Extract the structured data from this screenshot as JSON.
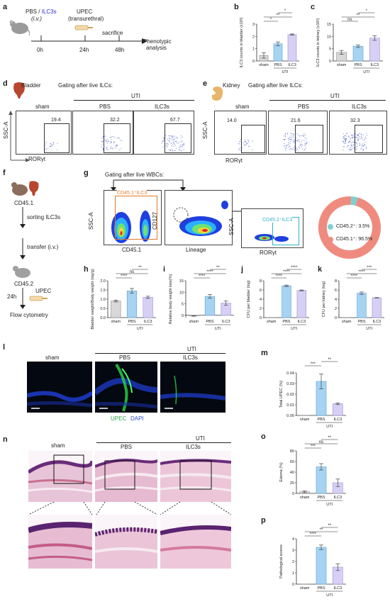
{
  "panel_a": {
    "letter": "a",
    "injection_prefix": "PBS / ",
    "injection_cells": "ILC3s",
    "route": "(i.v.)",
    "infection": "UPEC",
    "infection_route": "(transurethral)",
    "sacrifice": "sacrifice",
    "outcome_line1": "Phenotypic",
    "outcome_line2": "analysis",
    "t0": "0h",
    "t1": "24h",
    "t2": "48h"
  },
  "panel_b": {
    "letter": "b"
  },
  "panel_c": {
    "letter": "c"
  },
  "panel_d": {
    "letter": "d",
    "organ": "Bladder",
    "gating": "Gating after live ILCs:",
    "group": "UTI",
    "yaxis": "SSC-A",
    "xaxis": "RORγt",
    "plots": [
      {
        "label": "sham",
        "value": "19.4"
      },
      {
        "label": "PBS",
        "value": "32.2"
      },
      {
        "label": "ILC3s",
        "value": "67.7"
      }
    ]
  },
  "panel_e": {
    "letter": "e",
    "organ": "Kidney",
    "gating": "Gating after live ILCs:",
    "group": "UTI",
    "yaxis": "SSC-A",
    "xaxis": "RORγt",
    "plots": [
      {
        "label": "sham",
        "value": "14.0"
      },
      {
        "label": "PBS",
        "value": "21.6"
      },
      {
        "label": "ILC3s",
        "value": "32.3"
      }
    ]
  },
  "panel_f": {
    "letter": "f",
    "donor": "CD45.1",
    "sorting": "sorting ILC3s",
    "transfer": "transfer (i.v.)",
    "recipient": "CD45.2",
    "time": "24h",
    "infection": "UPEC",
    "readout": "Flow cytometry"
  },
  "panel_g": {
    "letter": "g",
    "gating": "Gating after live WBCs:",
    "plot1": {
      "gate": "CD45.1⁺ILC3",
      "y": "SSC-A",
      "x": "CD45.1"
    },
    "plot2": {
      "y": "CD127",
      "x": "Lineage"
    },
    "plot3": {
      "gate": "CD45.2⁺ILC3",
      "y": "SSC-A",
      "x": "RORγt"
    },
    "donut": {
      "slices": [
        {
          "label": "CD45.2⁺: 3.5%",
          "value": 3.5,
          "color": "#7fd0d2"
        },
        {
          "label": "CD45.1⁺: 96.5%",
          "value": 96.5,
          "color": "#ef8b7e"
        }
      ]
    }
  },
  "panel_l": {
    "letter": "l",
    "group": "UTI",
    "images": [
      "sham",
      "PBS",
      "ILC3s"
    ],
    "stain1": "UPEC",
    "stain2": "DAPI"
  },
  "panel_n": {
    "letter": "n",
    "group": "UTI",
    "images": [
      "sham",
      "PBS",
      "ILC3s"
    ]
  },
  "chart_data": [
    {
      "id": "b",
      "type": "bar",
      "categories": [
        "sham",
        "PBS",
        "ILC3"
      ],
      "values": [
        0.45,
        1.4,
        2.15
      ],
      "errors": [
        0.22,
        0.15,
        0.05
      ],
      "ylabel": "ILC3 counts in bladder (x10²)",
      "yticks": [
        "0",
        "1",
        "2",
        "3"
      ],
      "ylim": [
        0,
        3
      ],
      "group": "UTI",
      "sig": [
        {
          "text": "*",
          "from": 0,
          "to": 1
        },
        {
          "text": "**",
          "from": 0,
          "to": 2
        },
        {
          "text": "*",
          "from": 1,
          "to": 2
        }
      ]
    },
    {
      "id": "c",
      "type": "bar",
      "categories": [
        "sham",
        "PBS",
        "ILC3"
      ],
      "values": [
        3.5,
        6.0,
        9.3
      ],
      "errors": [
        0.8,
        0.5,
        0.9
      ],
      "ylabel": "ILC3 counts in kidney (x10²)",
      "yticks": [
        "0",
        "5",
        "10",
        "15"
      ],
      "ylim": [
        0,
        15
      ],
      "group": "UTI",
      "sig": [
        {
          "text": "ns",
          "from": 0,
          "to": 1
        },
        {
          "text": "**",
          "from": 0,
          "to": 2
        },
        {
          "text": "*",
          "from": 1,
          "to": 2
        }
      ]
    },
    {
      "id": "h",
      "type": "bar",
      "categories": [
        "sham",
        "PBS",
        "ILC3"
      ],
      "values": [
        0.9,
        1.45,
        1.1
      ],
      "errors": [
        0.05,
        0.13,
        0.06
      ],
      "ylabel": "Bladder weight/Body weight (mg/g)",
      "yticks": [
        "0.0",
        "0.5",
        "1.0",
        "1.5",
        "2.0"
      ],
      "ylim": [
        0,
        2
      ],
      "group": "UTI",
      "sig": [
        {
          "text": "****",
          "from": 0,
          "to": 1
        },
        {
          "text": "ns",
          "from": 0,
          "to": 2
        },
        {
          "text": "**",
          "from": 1,
          "to": 2
        }
      ]
    },
    {
      "id": "i",
      "type": "bar",
      "categories": [
        "sham",
        "PBS",
        "ILC3"
      ],
      "values": [
        -0.3,
        8.2,
        5.3
      ],
      "errors": [
        0.1,
        0.8,
        0.9
      ],
      "ylabel": "Relative body weight loss(%)",
      "yticks": [
        "0",
        "5",
        "10",
        "15"
      ],
      "ylim": [
        -1,
        15
      ],
      "group": "UTI",
      "sig": [
        {
          "text": "****",
          "from": 0,
          "to": 1
        },
        {
          "text": "****",
          "from": 0,
          "to": 2
        },
        {
          "text": "**",
          "from": 1,
          "to": 2
        }
      ]
    },
    {
      "id": "j",
      "type": "bar",
      "categories": [
        "sham",
        "PBS",
        "ILC3"
      ],
      "values": [
        0,
        6.9,
        5.9
      ],
      "errors": [
        0,
        0.15,
        0.1
      ],
      "ylabel": "CFU per bladder (log)",
      "yticks": [
        "0",
        "2",
        "4",
        "6",
        "8"
      ],
      "ylim": [
        0,
        8
      ],
      "group": "UTI",
      "sig": [
        {
          "text": "****",
          "from": 0,
          "to": 1
        },
        {
          "text": "****",
          "from": 0,
          "to": 2
        },
        {
          "text": "****",
          "from": 1,
          "to": 2
        }
      ]
    },
    {
      "id": "k",
      "type": "bar",
      "categories": [
        "sham",
        "PBS",
        "ILC3"
      ],
      "values": [
        0,
        5.3,
        4.3
      ],
      "errors": [
        0,
        0.25,
        0.05
      ],
      "ylabel": "CFU per kidney (log)",
      "yticks": [
        "0",
        "2",
        "4",
        "6",
        "8"
      ],
      "ylim": [
        0,
        8
      ],
      "group": "UTI",
      "sig": [
        {
          "text": "****",
          "from": 0,
          "to": 1
        },
        {
          "text": "****",
          "from": 0,
          "to": 2
        },
        {
          "text": "***",
          "from": 1,
          "to": 2
        }
      ]
    },
    {
      "id": "m",
      "type": "bar",
      "categories": [
        "sham",
        "PBS",
        "ILC3"
      ],
      "values": [
        0,
        0.032,
        0.011
      ],
      "errors": [
        0,
        0.007,
        0.0008
      ],
      "ylabel": "Total UPEC (%)",
      "yticks": [
        "0.00",
        "0.01",
        "0.02",
        "0.03",
        "0.04"
      ],
      "ylim": [
        0,
        0.04
      ],
      "group": "UTI",
      "sig": [
        {
          "text": "***",
          "from": 0,
          "to": 1
        },
        {
          "text": "**",
          "from": 1,
          "to": 2
        }
      ]
    },
    {
      "id": "o",
      "type": "bar",
      "categories": [
        "sham",
        "PBS",
        "ILC3"
      ],
      "values": [
        3,
        50,
        20
      ],
      "errors": [
        1.5,
        6,
        7
      ],
      "ylabel": "Edema (%)",
      "yticks": [
        "0",
        "20",
        "40",
        "60",
        "80"
      ],
      "ylim": [
        0,
        80
      ],
      "group": "UTI",
      "sig": [
        {
          "text": "***",
          "from": 0,
          "to": 1
        },
        {
          "text": "ns",
          "from": 0,
          "to": 2
        },
        {
          "text": "**",
          "from": 1,
          "to": 2
        }
      ]
    },
    {
      "id": "p",
      "type": "bar",
      "categories": [
        "sham",
        "PBS",
        "ILC3"
      ],
      "values": [
        0,
        3.25,
        1.5
      ],
      "errors": [
        0,
        0.2,
        0.3
      ],
      "ylabel": "Pathological scores",
      "yticks": [
        "0",
        "1",
        "2",
        "3",
        "4"
      ],
      "ylim": [
        0,
        4
      ],
      "group": "UTI",
      "sig": [
        {
          "text": "****",
          "from": 0,
          "to": 1
        },
        {
          "text": "**",
          "from": 0,
          "to": 2
        },
        {
          "text": "**",
          "from": 1,
          "to": 2
        }
      ]
    }
  ]
}
